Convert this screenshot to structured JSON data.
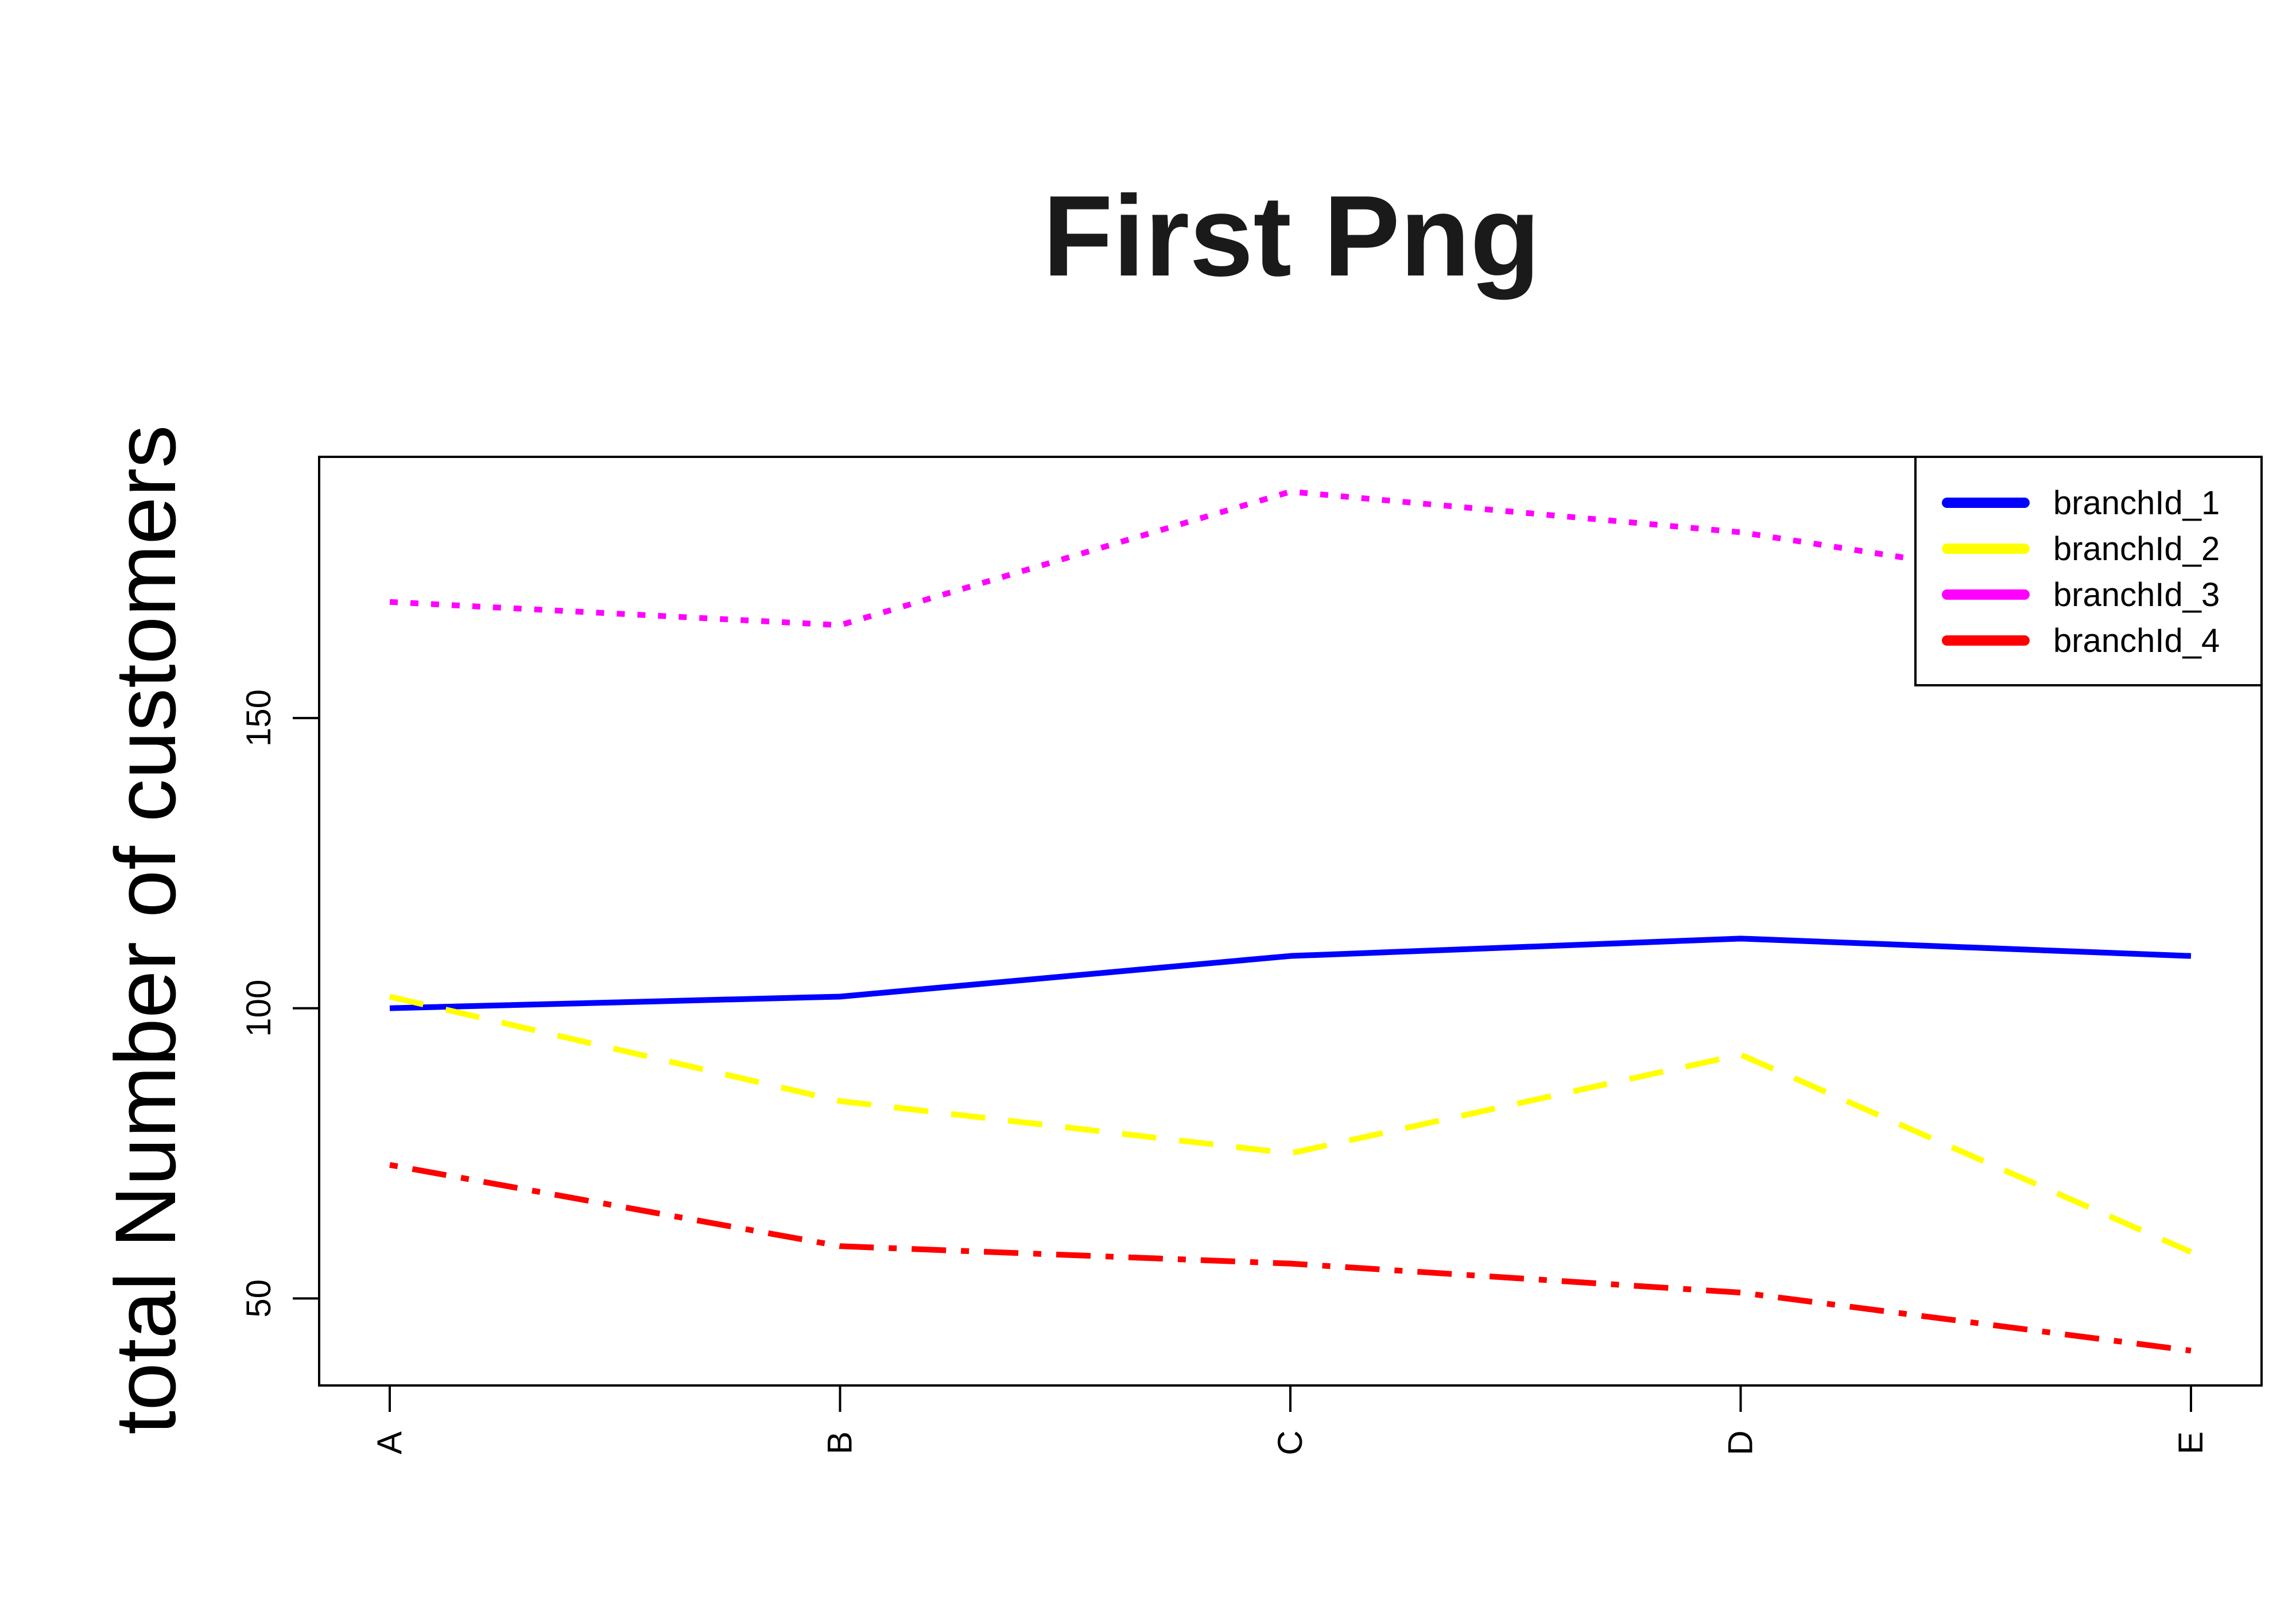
{
  "chart_data": {
    "type": "line",
    "title": "First Png",
    "xlabel": "",
    "ylabel": "total Number of customers",
    "categories": [
      "A",
      "B",
      "C",
      "D",
      "E"
    ],
    "yticks": [
      50,
      100,
      150
    ],
    "ylim": [
      35,
      195
    ],
    "grid": false,
    "legend_position": "top-right",
    "series": [
      {
        "name": "branchId_1",
        "color": "#0000ff",
        "dash": "solid",
        "values": [
          100,
          102,
          109,
          112,
          109
        ]
      },
      {
        "name": "branchId_2",
        "color": "#ffff00",
        "dash": "dashed",
        "values": [
          102,
          84,
          75,
          92,
          58
        ]
      },
      {
        "name": "branchId_3",
        "color": "#ff00ff",
        "dash": "dotted",
        "values": [
          170,
          166,
          189,
          182,
          170
        ]
      },
      {
        "name": "branchId_4",
        "color": "#ff0000",
        "dash": "dotdash",
        "values": [
          73,
          59,
          56,
          51,
          41
        ]
      }
    ]
  }
}
